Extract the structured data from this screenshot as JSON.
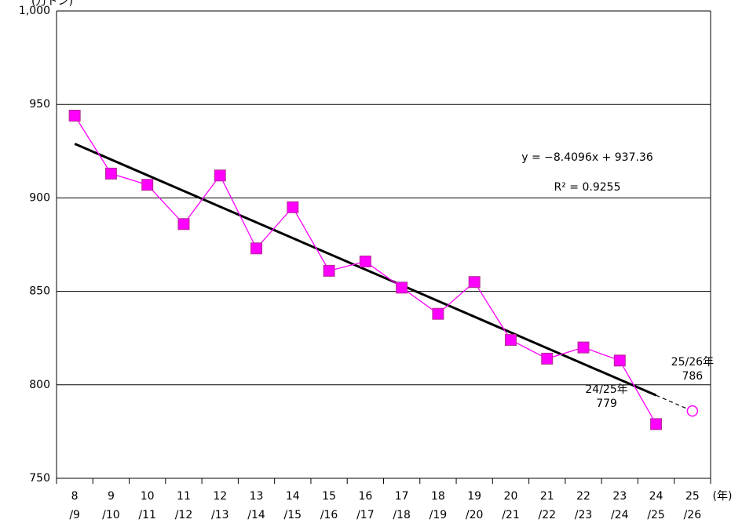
{
  "chart_data": {
    "type": "line",
    "y_unit": "(万トン)",
    "x_unit": "(年)",
    "categories": [
      [
        "8",
        "/9"
      ],
      [
        "9",
        "/10"
      ],
      [
        "10",
        "/11"
      ],
      [
        "11",
        "/12"
      ],
      [
        "12",
        "/13"
      ],
      [
        "13",
        "/14"
      ],
      [
        "14",
        "/15"
      ],
      [
        "15",
        "/16"
      ],
      [
        "16",
        "/17"
      ],
      [
        "17",
        "/18"
      ],
      [
        "18",
        "/19"
      ],
      [
        "19",
        "/20"
      ],
      [
        "20",
        "/21"
      ],
      [
        "21",
        "/22"
      ],
      [
        "22",
        "/23"
      ],
      [
        "23",
        "/24"
      ],
      [
        "24",
        "/25"
      ],
      [
        "25",
        "/26"
      ]
    ],
    "values": [
      944,
      913,
      907,
      886,
      912,
      873,
      895,
      861,
      866,
      852,
      838,
      855,
      824,
      814,
      820,
      813,
      779,
      null
    ],
    "color": "#ff00ff",
    "annotations": [
      "24/25年",
      "25/26年"
    ],
    "forecast": {
      "value": 786
    },
    "trend": {
      "equation": "y = −8.4096x + 937.36",
      "r2": "R² = 0.9255",
      "slope": -8.4096,
      "intercept": 937.36,
      "color": "#000000"
    },
    "ylim": [
      750,
      1000
    ],
    "yticks": [
      750,
      800,
      850,
      900,
      950,
      {
        "value": 1000,
        "label": "1,000"
      }
    ],
    "grid": true
  }
}
